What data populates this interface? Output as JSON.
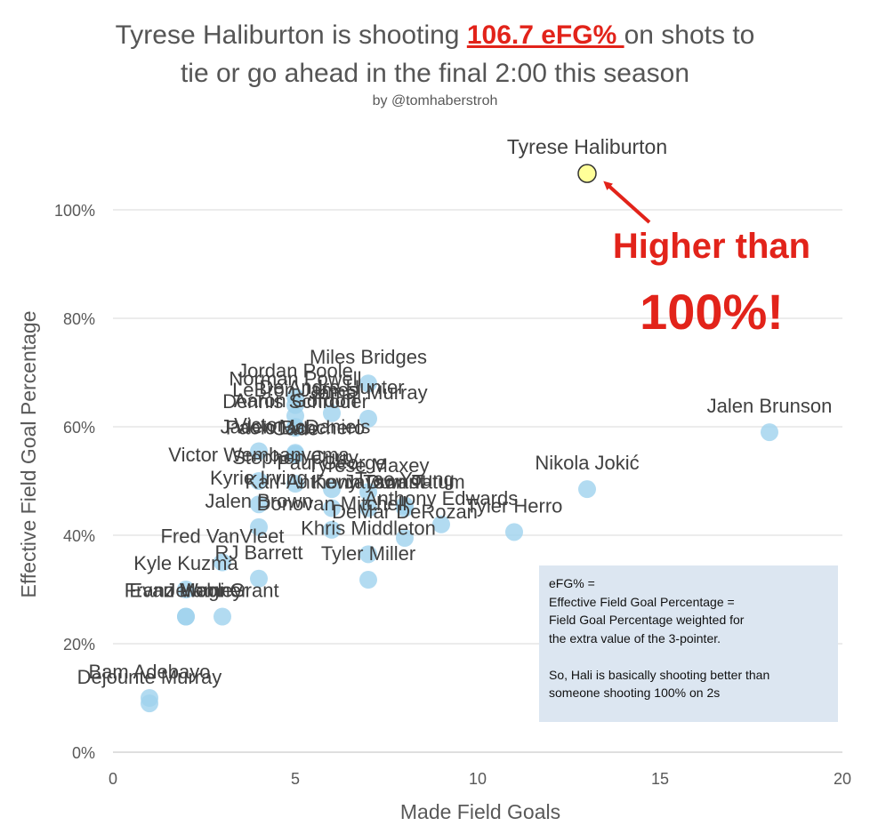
{
  "title": {
    "before": "Tyrese Haliburton is shooting ",
    "highlight": "106.7 eFG% ",
    "after_line1": "on shots to",
    "line2": "tie or go ahead in the final 2:00 this season"
  },
  "byline": "by @tomhaberstroh",
  "callout": {
    "line1": "Higher than",
    "line2": "100%!"
  },
  "note": {
    "lines": [
      "eFG% =",
      "Effective Field Goal Percentage =",
      "Field Goal Percentage weighted for",
      "the extra value of the 3-pointer.",
      "",
      "So, Hali is basically shooting better than",
      "someone shooting 100% on 2s"
    ]
  },
  "colors": {
    "point": "#9fd2ee",
    "highlight_point": "#ffff99",
    "accent": "#e2231a",
    "note_bg": "#dce6f1",
    "grid": "#d9d9d9"
  },
  "chart_data": {
    "type": "scatter",
    "title": "Tyrese Haliburton is shooting 106.7 eFG% on shots to tie or go ahead in the final 2:00 this season",
    "xlabel": "Made Field Goals",
    "ylabel": "Effective Field Goal Percentage",
    "xlim": [
      0,
      20
    ],
    "ylim": [
      0,
      1.1
    ],
    "x_ticks": [
      0,
      5,
      10,
      15,
      20
    ],
    "x_tick_labels": [
      "0",
      "5",
      "10",
      "15",
      "20"
    ],
    "y_ticks": [
      0,
      0.2,
      0.4,
      0.6,
      0.8,
      1.0
    ],
    "y_tick_labels": [
      "0%",
      "20%",
      "40%",
      "60%",
      "80%",
      "100%"
    ],
    "grid": "horizontal",
    "points": [
      {
        "name": "Tyrese Haliburton",
        "x": 13,
        "y": 1.067,
        "highlight": true
      },
      {
        "name": "Jalen Brunson",
        "x": 18,
        "y": 0.59
      },
      {
        "name": "Nikola Jokić",
        "x": 13,
        "y": 0.485
      },
      {
        "name": "Tyler Herro",
        "x": 11,
        "y": 0.406
      },
      {
        "name": "Miles Bridges",
        "x": 7,
        "y": 0.68
      },
      {
        "name": "Jordan Poole",
        "x": 5,
        "y": 0.655
      },
      {
        "name": "De'Andre Hunter",
        "x": 6,
        "y": 0.625
      },
      {
        "name": "Jamal Murray",
        "x": 7,
        "y": 0.615
      },
      {
        "name": "Norman Powell",
        "x": 5,
        "y": 0.64
      },
      {
        "name": "LeBron James",
        "x": 5,
        "y": 0.62
      },
      {
        "name": "Dennis Schroder",
        "x": 5,
        "y": 0.598
      },
      {
        "name": "Aaron Gordon",
        "x": 5,
        "y": 0.6
      },
      {
        "name": "Victor",
        "x": 4,
        "y": 0.555
      },
      {
        "name": "Paolo Banchero",
        "x": 5,
        "y": 0.55
      },
      {
        "name": "Jaden McDaniels",
        "x": 5,
        "y": 0.552
      },
      {
        "name": "Cade",
        "x": 5,
        "y": 0.548
      },
      {
        "name": "Victor Wembanyama",
        "x": 4,
        "y": 0.5
      },
      {
        "name": "Stephen Curry",
        "x": 5,
        "y": 0.495
      },
      {
        "name": "Tyrese Maxey",
        "x": 7,
        "y": 0.48
      },
      {
        "name": "Paul George",
        "x": 6,
        "y": 0.485
      },
      {
        "name": "Trae Young",
        "x": 8,
        "y": 0.455
      },
      {
        "name": "Jayson Tatum",
        "x": 8,
        "y": 0.45
      },
      {
        "name": "Kyrie Irving",
        "x": 4,
        "y": 0.457
      },
      {
        "name": "Karl-Anthony Towns",
        "x": 6,
        "y": 0.45
      },
      {
        "name": "Kevin Durant",
        "x": 7,
        "y": 0.45
      },
      {
        "name": "Anthony Edwards",
        "x": 9,
        "y": 0.42
      },
      {
        "name": "Donovan Mitchell",
        "x": 6,
        "y": 0.41
      },
      {
        "name": "Jalen Brown",
        "x": 4,
        "y": 0.415
      },
      {
        "name": "DeMar DeRozan",
        "x": 8,
        "y": 0.395
      },
      {
        "name": "RJ Barrett",
        "x": 4,
        "y": 0.32
      },
      {
        "name": "Fred VanVleet",
        "x": 3,
        "y": 0.35
      },
      {
        "name": "Khris Middleton",
        "x": 7,
        "y": 0.365
      },
      {
        "name": "Kyle Kuzma",
        "x": 2,
        "y": 0.3
      },
      {
        "name": "Franz Wagner",
        "x": 2,
        "y": 0.25
      },
      {
        "name": "Evan Mobley",
        "x": 2,
        "y": 0.25
      },
      {
        "name": "Jerami Grant",
        "x": 3,
        "y": 0.25
      },
      {
        "name": "Tyler Miller",
        "x": 7,
        "y": 0.318
      },
      {
        "name": "Bam Adebayo",
        "x": 1,
        "y": 0.1
      },
      {
        "name": "Dejounte Murray",
        "x": 1,
        "y": 0.09
      }
    ]
  }
}
